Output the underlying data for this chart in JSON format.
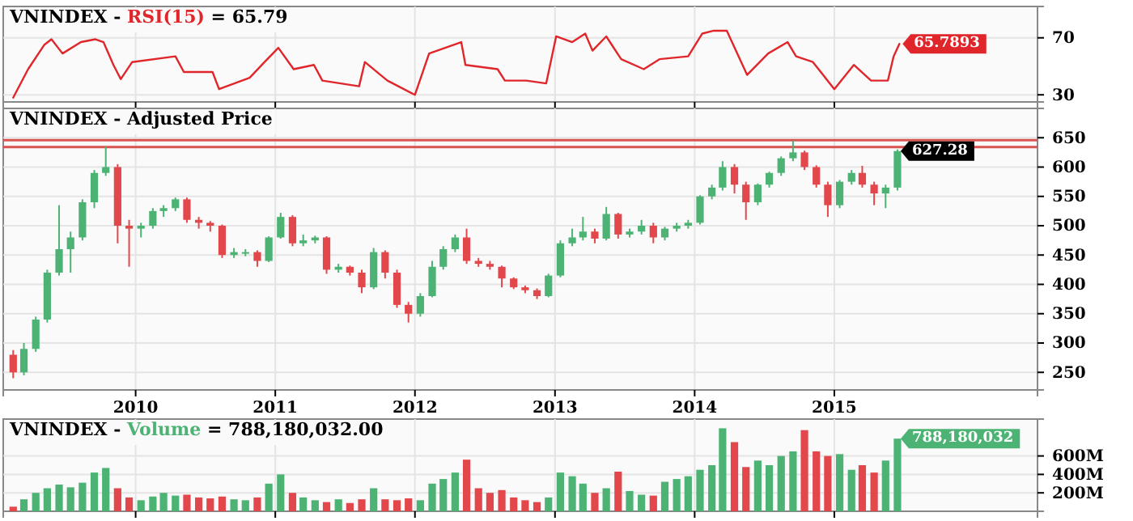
{
  "chart_data": [
    {
      "type": "line",
      "title": "VNINDEX - RSI(15) = 65.79",
      "tick_labels": "y",
      "grid": true,
      "xlim": [
        "2009-01-20",
        "2016-06-15"
      ],
      "xticks": [
        "2010",
        "2011",
        "2012",
        "2013",
        "2014",
        "2015"
      ],
      "ylim": [
        25,
        92
      ],
      "yticks": [
        30,
        70
      ],
      "series": [
        {
          "color": "#e0262b",
          "x": [
            "2009-02-15",
            "2009-03-26",
            "2009-05-07",
            "2009-05-26",
            "2009-06-24",
            "2009-08-11",
            "2009-09-18",
            "2009-10-09",
            "2009-11-04",
            "2009-11-23",
            "2009-12-23",
            "2010-04-15",
            "2010-05-07",
            "2010-07-21",
            "2010-08-07",
            "2010-10-26",
            "2010-12-04",
            "2011-01-09",
            "2011-02-18",
            "2011-04-12",
            "2011-05-04",
            "2011-08-08",
            "2011-08-23",
            "2011-10-21",
            "2012-01-01",
            "2012-02-07",
            "2012-05-01",
            "2012-05-12",
            "2012-08-04",
            "2012-08-23",
            "2012-10-18",
            "2012-12-09",
            "2013-01-04",
            "2013-02-15",
            "2013-03-21",
            "2013-04-09",
            "2013-05-15",
            "2013-06-23",
            "2013-08-21",
            "2013-10-01",
            "2013-12-15",
            "2014-01-21",
            "2014-02-20",
            "2014-03-26",
            "2014-05-18",
            "2014-07-12",
            "2014-09-01",
            "2014-09-23",
            "2014-11-06",
            "2015-01-01",
            "2015-02-21",
            "2015-04-07",
            "2015-05-21",
            "2015-06-05",
            "2015-06-20"
          ],
          "values": [
            28,
            48,
            65,
            69,
            59,
            67,
            69,
            67,
            51,
            41,
            53,
            57,
            46,
            46,
            34,
            42,
            53,
            63,
            48,
            51,
            40,
            36,
            53,
            40,
            30,
            59,
            67,
            51,
            48,
            40,
            40,
            38,
            71,
            67,
            73,
            61,
            71,
            55,
            48,
            55,
            57,
            73,
            75,
            75,
            44,
            59,
            67,
            57,
            53,
            34,
            51,
            40,
            40,
            57,
            65.79
          ]
        }
      ],
      "annotations": [
        {
          "text": "65.7893",
          "x": "2015-06-20",
          "y": 65.7893
        }
      ]
    },
    {
      "type": "candlestick",
      "title": "VNINDEX - Adjusted Price",
      "grid": true,
      "xlim": [
        "2009-01-20",
        "2016-06-15"
      ],
      "xticks": [
        "2010",
        "2011",
        "2012",
        "2013",
        "2014",
        "2015"
      ],
      "ylim": [
        220,
        700
      ],
      "yticks": [
        250,
        300,
        350,
        400,
        450,
        500,
        550,
        600,
        650
      ],
      "colors": [
        "#e2474b",
        "#4db374",
        "#4db374",
        "#4db374",
        "#4db374",
        "#4db374",
        "#4db374",
        "#4db374",
        "#4db374",
        "#e2474b",
        "#e2474b",
        "#4db374",
        "#4db374",
        "#4db374",
        "#4db374",
        "#e2474b",
        "#e2474b",
        "#e2474b",
        "#e2474b",
        "#4db374",
        "#4db374",
        "#e2474b",
        "#4db374",
        "#4db374",
        "#e2474b",
        "#4db374",
        "#4db374",
        "#e2474b",
        "#4db374",
        "#e2474b",
        "#e2474b",
        "#4db374",
        "#e2474b",
        "#e2474b",
        "#e2474b",
        "#4db374",
        "#4db374",
        "#4db374",
        "#4db374",
        "#e2474b",
        "#e2474b",
        "#e2474b",
        "#e2474b",
        "#e2474b",
        "#e2474b",
        "#e2474b",
        "#4db374",
        "#4db374",
        "#4db374",
        "#4db374",
        "#e2474b",
        "#4db374",
        "#e2474b",
        "#4db374",
        "#4db374",
        "#e2474b",
        "#4db374",
        "#4db374",
        "#4db374",
        "#4db374",
        "#4db374",
        "#4db374",
        "#e2474b",
        "#e2474b",
        "#4db374",
        "#4db374",
        "#4db374",
        "#4db374",
        "#e2474b",
        "#e2474b",
        "#e2474b",
        "#4db374",
        "#4db374",
        "#e2474b",
        "#e2474b",
        "#4db374",
        "#4db374"
      ],
      "x": [
        "2009-02-15",
        "2009-03-15",
        "2009-04-15",
        "2009-05-15",
        "2009-06-15",
        "2009-07-15",
        "2009-08-15",
        "2009-09-15",
        "2009-10-15",
        "2009-11-15",
        "2009-12-15",
        "2010-01-15",
        "2010-02-15",
        "2010-03-15",
        "2010-04-15",
        "2010-05-15",
        "2010-06-15",
        "2010-07-15",
        "2010-08-15",
        "2010-09-15",
        "2010-10-15",
        "2010-11-15",
        "2010-12-15",
        "2011-01-15",
        "2011-02-15",
        "2011-03-15",
        "2011-04-15",
        "2011-05-15",
        "2011-06-15",
        "2011-07-15",
        "2011-08-15",
        "2011-09-15",
        "2011-10-15",
        "2011-11-15",
        "2011-12-15",
        "2012-01-15",
        "2012-02-15",
        "2012-03-15",
        "2012-04-15",
        "2012-05-15",
        "2012-06-15",
        "2012-07-15",
        "2012-08-15",
        "2012-09-15",
        "2012-10-15",
        "2012-11-15",
        "2012-12-15",
        "2013-01-15",
        "2013-02-15",
        "2013-03-15",
        "2013-04-15",
        "2013-05-15",
        "2013-06-15",
        "2013-07-15",
        "2013-08-15",
        "2013-09-15",
        "2013-10-15",
        "2013-11-15",
        "2013-12-15",
        "2014-01-15",
        "2014-02-15",
        "2014-03-15",
        "2014-04-15",
        "2014-05-15",
        "2014-06-15",
        "2014-07-15",
        "2014-08-15",
        "2014-09-15",
        "2014-10-15",
        "2014-11-15",
        "2014-12-15",
        "2015-01-15",
        "2015-02-15",
        "2015-03-15",
        "2015-04-15",
        "2015-05-15",
        "2015-06-15"
      ],
      "ohlc": [
        [
          280,
          288,
          240,
          250
        ],
        [
          250,
          300,
          245,
          290
        ],
        [
          290,
          345,
          285,
          340
        ],
        [
          340,
          425,
          335,
          420
        ],
        [
          420,
          535,
          415,
          460
        ],
        [
          460,
          490,
          420,
          480
        ],
        [
          480,
          545,
          475,
          540
        ],
        [
          540,
          595,
          530,
          590
        ],
        [
          590,
          635,
          585,
          600
        ],
        [
          600,
          605,
          470,
          500
        ],
        [
          500,
          510,
          430,
          495
        ],
        [
          495,
          505,
          480,
          500
        ],
        [
          500,
          530,
          495,
          525
        ],
        [
          525,
          535,
          515,
          530
        ],
        [
          530,
          548,
          525,
          545
        ],
        [
          545,
          548,
          505,
          510
        ],
        [
          510,
          515,
          495,
          505
        ],
        [
          505,
          508,
          490,
          500
        ],
        [
          500,
          502,
          445,
          450
        ],
        [
          450,
          462,
          445,
          455
        ],
        [
          455,
          460,
          448,
          455
        ],
        [
          455,
          458,
          430,
          440
        ],
        [
          440,
          482,
          438,
          480
        ],
        [
          480,
          522,
          478,
          515
        ],
        [
          515,
          518,
          465,
          470
        ],
        [
          470,
          485,
          465,
          475
        ],
        [
          475,
          483,
          470,
          480
        ],
        [
          480,
          482,
          418,
          425
        ],
        [
          425,
          435,
          420,
          430
        ],
        [
          430,
          432,
          415,
          420
        ],
        [
          420,
          425,
          385,
          395
        ],
        [
          395,
          462,
          392,
          455
        ],
        [
          455,
          458,
          410,
          420
        ],
        [
          420,
          425,
          360,
          365
        ],
        [
          365,
          370,
          335,
          350
        ],
        [
          350,
          385,
          345,
          380
        ],
        [
          380,
          440,
          378,
          430
        ],
        [
          430,
          465,
          425,
          460
        ],
        [
          460,
          485,
          455,
          480
        ],
        [
          480,
          495,
          435,
          440
        ],
        [
          440,
          445,
          430,
          435
        ],
        [
          435,
          440,
          425,
          430
        ],
        [
          430,
          432,
          395,
          410
        ],
        [
          410,
          412,
          392,
          395
        ],
        [
          395,
          398,
          385,
          390
        ],
        [
          390,
          393,
          375,
          380
        ],
        [
          380,
          418,
          378,
          415
        ],
        [
          415,
          475,
          412,
          470
        ],
        [
          470,
          495,
          465,
          480
        ],
        [
          480,
          515,
          475,
          490
        ],
        [
          490,
          495,
          470,
          478
        ],
        [
          478,
          532,
          475,
          520
        ],
        [
          520,
          522,
          478,
          485
        ],
        [
          485,
          495,
          480,
          490
        ],
        [
          490,
          510,
          485,
          500
        ],
        [
          500,
          505,
          470,
          480
        ],
        [
          480,
          498,
          475,
          495
        ],
        [
          495,
          505,
          490,
          500
        ],
        [
          500,
          510,
          495,
          505
        ],
        [
          505,
          552,
          502,
          550
        ],
        [
          550,
          570,
          545,
          565
        ],
        [
          565,
          610,
          560,
          600
        ],
        [
          600,
          605,
          555,
          570
        ],
        [
          570,
          575,
          510,
          540
        ],
        [
          540,
          572,
          535,
          570
        ],
        [
          570,
          592,
          565,
          590
        ],
        [
          590,
          618,
          585,
          615
        ],
        [
          615,
          645,
          610,
          625
        ],
        [
          625,
          628,
          595,
          600
        ],
        [
          600,
          603,
          565,
          570
        ],
        [
          570,
          575,
          515,
          535
        ],
        [
          535,
          578,
          530,
          575
        ],
        [
          575,
          595,
          570,
          590
        ],
        [
          590,
          602,
          565,
          570
        ],
        [
          570,
          575,
          535,
          555
        ],
        [
          555,
          570,
          530,
          565
        ],
        [
          565,
          630,
          560,
          627.28
        ]
      ],
      "ref_lines": [
        {
          "axis": "y",
          "value": 646,
          "color": "#d9534f"
        },
        {
          "axis": "y",
          "value": 634,
          "color": "#d9534f"
        }
      ],
      "annotations": [
        {
          "text": "627.28",
          "x": "2015-06-15",
          "y": 627.28
        }
      ]
    },
    {
      "type": "bar",
      "title": "VNINDEX - Volume = 788,180,032.00",
      "tick_labels": "y",
      "grid": true,
      "xlim": [
        "2009-01-20",
        "2016-06-15"
      ],
      "xticks": [
        "2010",
        "2011",
        "2012",
        "2013",
        "2014",
        "2015"
      ],
      "ylim": [
        0,
        1000000000
      ],
      "yticks": [
        {
          "value": 200000000,
          "label": "200M"
        },
        {
          "value": 400000000,
          "label": "400M"
        },
        {
          "value": 600000000,
          "label": "600M"
        }
      ],
      "x": [
        "2009-02-15",
        "2009-03-15",
        "2009-04-15",
        "2009-05-15",
        "2009-06-15",
        "2009-07-15",
        "2009-08-15",
        "2009-09-15",
        "2009-10-15",
        "2009-11-15",
        "2009-12-15",
        "2010-01-15",
        "2010-02-15",
        "2010-03-15",
        "2010-04-15",
        "2010-05-15",
        "2010-06-15",
        "2010-07-15",
        "2010-08-15",
        "2010-09-15",
        "2010-10-15",
        "2010-11-15",
        "2010-12-15",
        "2011-01-15",
        "2011-02-15",
        "2011-03-15",
        "2011-04-15",
        "2011-05-15",
        "2011-06-15",
        "2011-07-15",
        "2011-08-15",
        "2011-09-15",
        "2011-10-15",
        "2011-11-15",
        "2011-12-15",
        "2012-01-15",
        "2012-02-15",
        "2012-03-15",
        "2012-04-15",
        "2012-05-15",
        "2012-06-15",
        "2012-07-15",
        "2012-08-15",
        "2012-09-15",
        "2012-10-15",
        "2012-11-15",
        "2012-12-15",
        "2013-01-15",
        "2013-02-15",
        "2013-03-15",
        "2013-04-15",
        "2013-05-15",
        "2013-06-15",
        "2013-07-15",
        "2013-08-15",
        "2013-09-15",
        "2013-10-15",
        "2013-11-15",
        "2013-12-15",
        "2014-01-15",
        "2014-02-15",
        "2014-03-15",
        "2014-04-15",
        "2014-05-15",
        "2014-06-15",
        "2014-07-15",
        "2014-08-15",
        "2014-09-15",
        "2014-10-15",
        "2014-11-15",
        "2014-12-15",
        "2015-01-15",
        "2015-02-15",
        "2015-03-15",
        "2015-04-15",
        "2015-05-15",
        "2015-06-15"
      ],
      "values": [
        50000000,
        130000000,
        200000000,
        250000000,
        290000000,
        260000000,
        310000000,
        420000000,
        470000000,
        250000000,
        150000000,
        120000000,
        160000000,
        200000000,
        170000000,
        180000000,
        150000000,
        140000000,
        160000000,
        130000000,
        120000000,
        150000000,
        300000000,
        400000000,
        200000000,
        150000000,
        120000000,
        100000000,
        130000000,
        90000000,
        130000000,
        250000000,
        130000000,
        120000000,
        140000000,
        120000000,
        300000000,
        350000000,
        420000000,
        560000000,
        250000000,
        200000000,
        230000000,
        150000000,
        120000000,
        100000000,
        150000000,
        420000000,
        380000000,
        300000000,
        200000000,
        250000000,
        430000000,
        220000000,
        180000000,
        170000000,
        320000000,
        350000000,
        380000000,
        450000000,
        500000000,
        900000000,
        750000000,
        480000000,
        550000000,
        500000000,
        600000000,
        650000000,
        880000000,
        650000000,
        600000000,
        620000000,
        450000000,
        500000000,
        420000000,
        550000000,
        788180032
      ],
      "colors": [
        "#e2474b",
        "#4db374",
        "#4db374",
        "#4db374",
        "#4db374",
        "#4db374",
        "#4db374",
        "#4db374",
        "#4db374",
        "#e2474b",
        "#e2474b",
        "#4db374",
        "#4db374",
        "#4db374",
        "#4db374",
        "#e2474b",
        "#e2474b",
        "#e2474b",
        "#e2474b",
        "#4db374",
        "#4db374",
        "#e2474b",
        "#4db374",
        "#4db374",
        "#e2474b",
        "#4db374",
        "#4db374",
        "#e2474b",
        "#4db374",
        "#e2474b",
        "#e2474b",
        "#4db374",
        "#e2474b",
        "#e2474b",
        "#e2474b",
        "#4db374",
        "#4db374",
        "#4db374",
        "#4db374",
        "#e2474b",
        "#e2474b",
        "#e2474b",
        "#e2474b",
        "#e2474b",
        "#e2474b",
        "#e2474b",
        "#4db374",
        "#4db374",
        "#4db374",
        "#4db374",
        "#e2474b",
        "#4db374",
        "#e2474b",
        "#4db374",
        "#4db374",
        "#e2474b",
        "#4db374",
        "#4db374",
        "#4db374",
        "#4db374",
        "#4db374",
        "#4db374",
        "#e2474b",
        "#e2474b",
        "#4db374",
        "#4db374",
        "#4db374",
        "#4db374",
        "#e2474b",
        "#e2474b",
        "#e2474b",
        "#4db374",
        "#4db374",
        "#e2474b",
        "#e2474b",
        "#4db374",
        "#4db374"
      ],
      "annotations": [
        {
          "text": "788,180,032",
          "x": "2015-06-15",
          "y": 788180032
        }
      ]
    }
  ]
}
